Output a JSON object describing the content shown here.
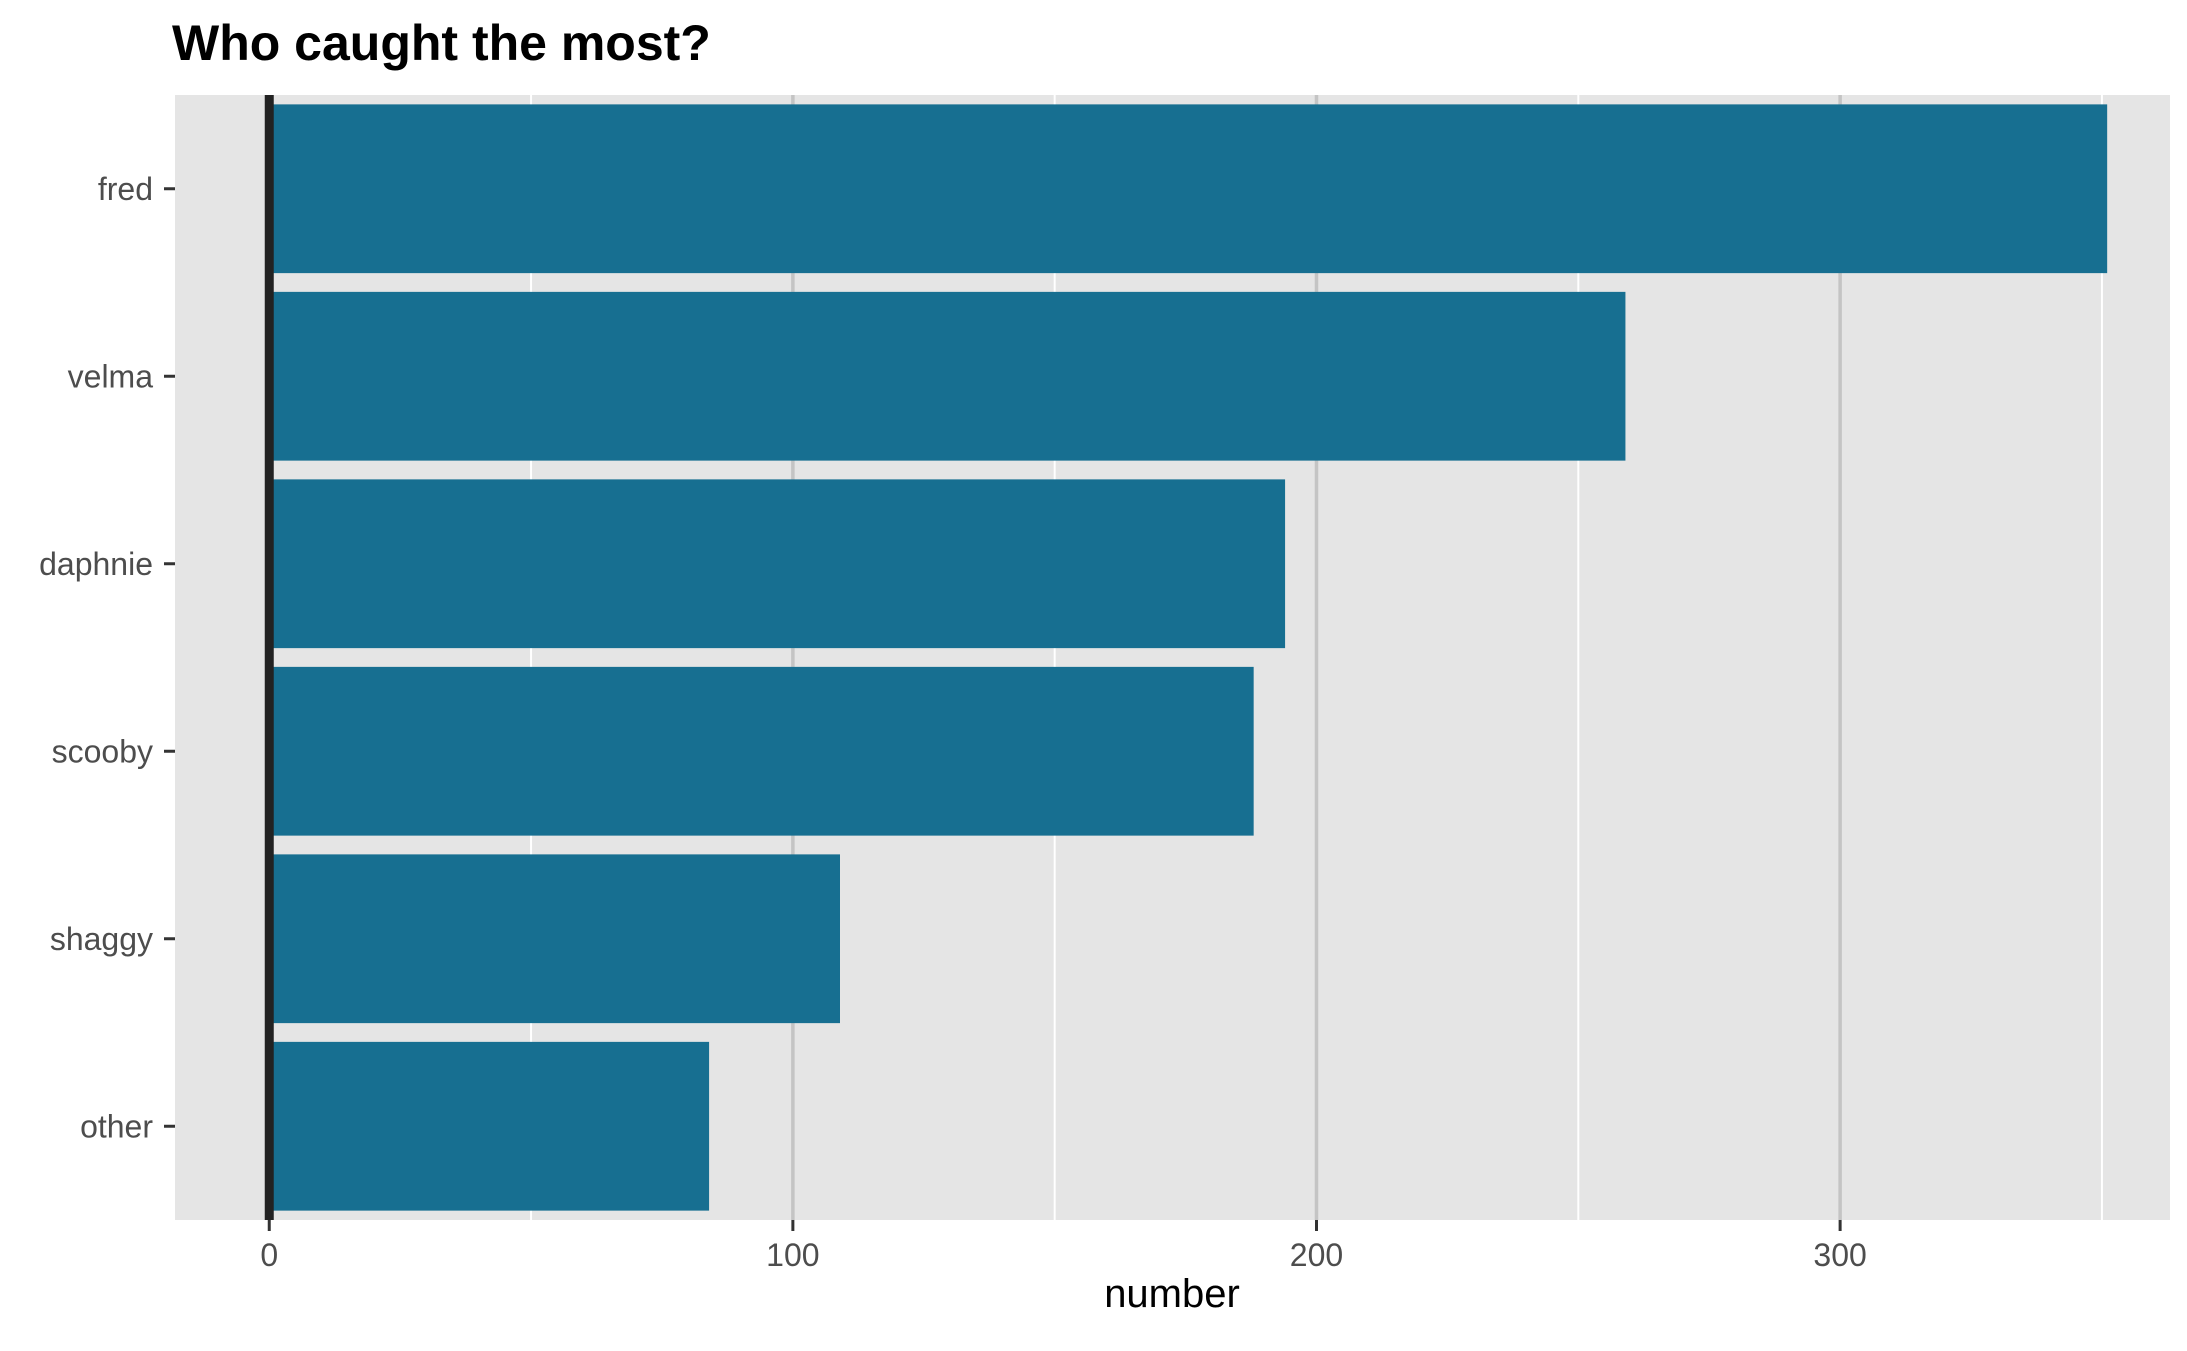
{
  "chart_data": {
    "type": "bar",
    "orientation": "horizontal",
    "title": "Who caught the most?",
    "xlabel": "number",
    "ylabel": "",
    "categories": [
      "fred",
      "velma",
      "daphnie",
      "scooby",
      "shaggy",
      "other"
    ],
    "values": [
      351,
      259,
      194,
      188,
      109,
      84
    ],
    "xlim": [
      -18,
      363
    ],
    "x_ticks": [
      "0",
      "100",
      "200",
      "300"
    ],
    "x_tick_values": [
      0,
      100,
      200,
      300
    ],
    "grid": true,
    "legend": "none",
    "colors": {
      "bar": "#176f91",
      "panel": "#e5e5e5",
      "grid_major": "#c4c4c4",
      "grid_minor": "#ffffff",
      "zero_line": "#222222"
    }
  }
}
